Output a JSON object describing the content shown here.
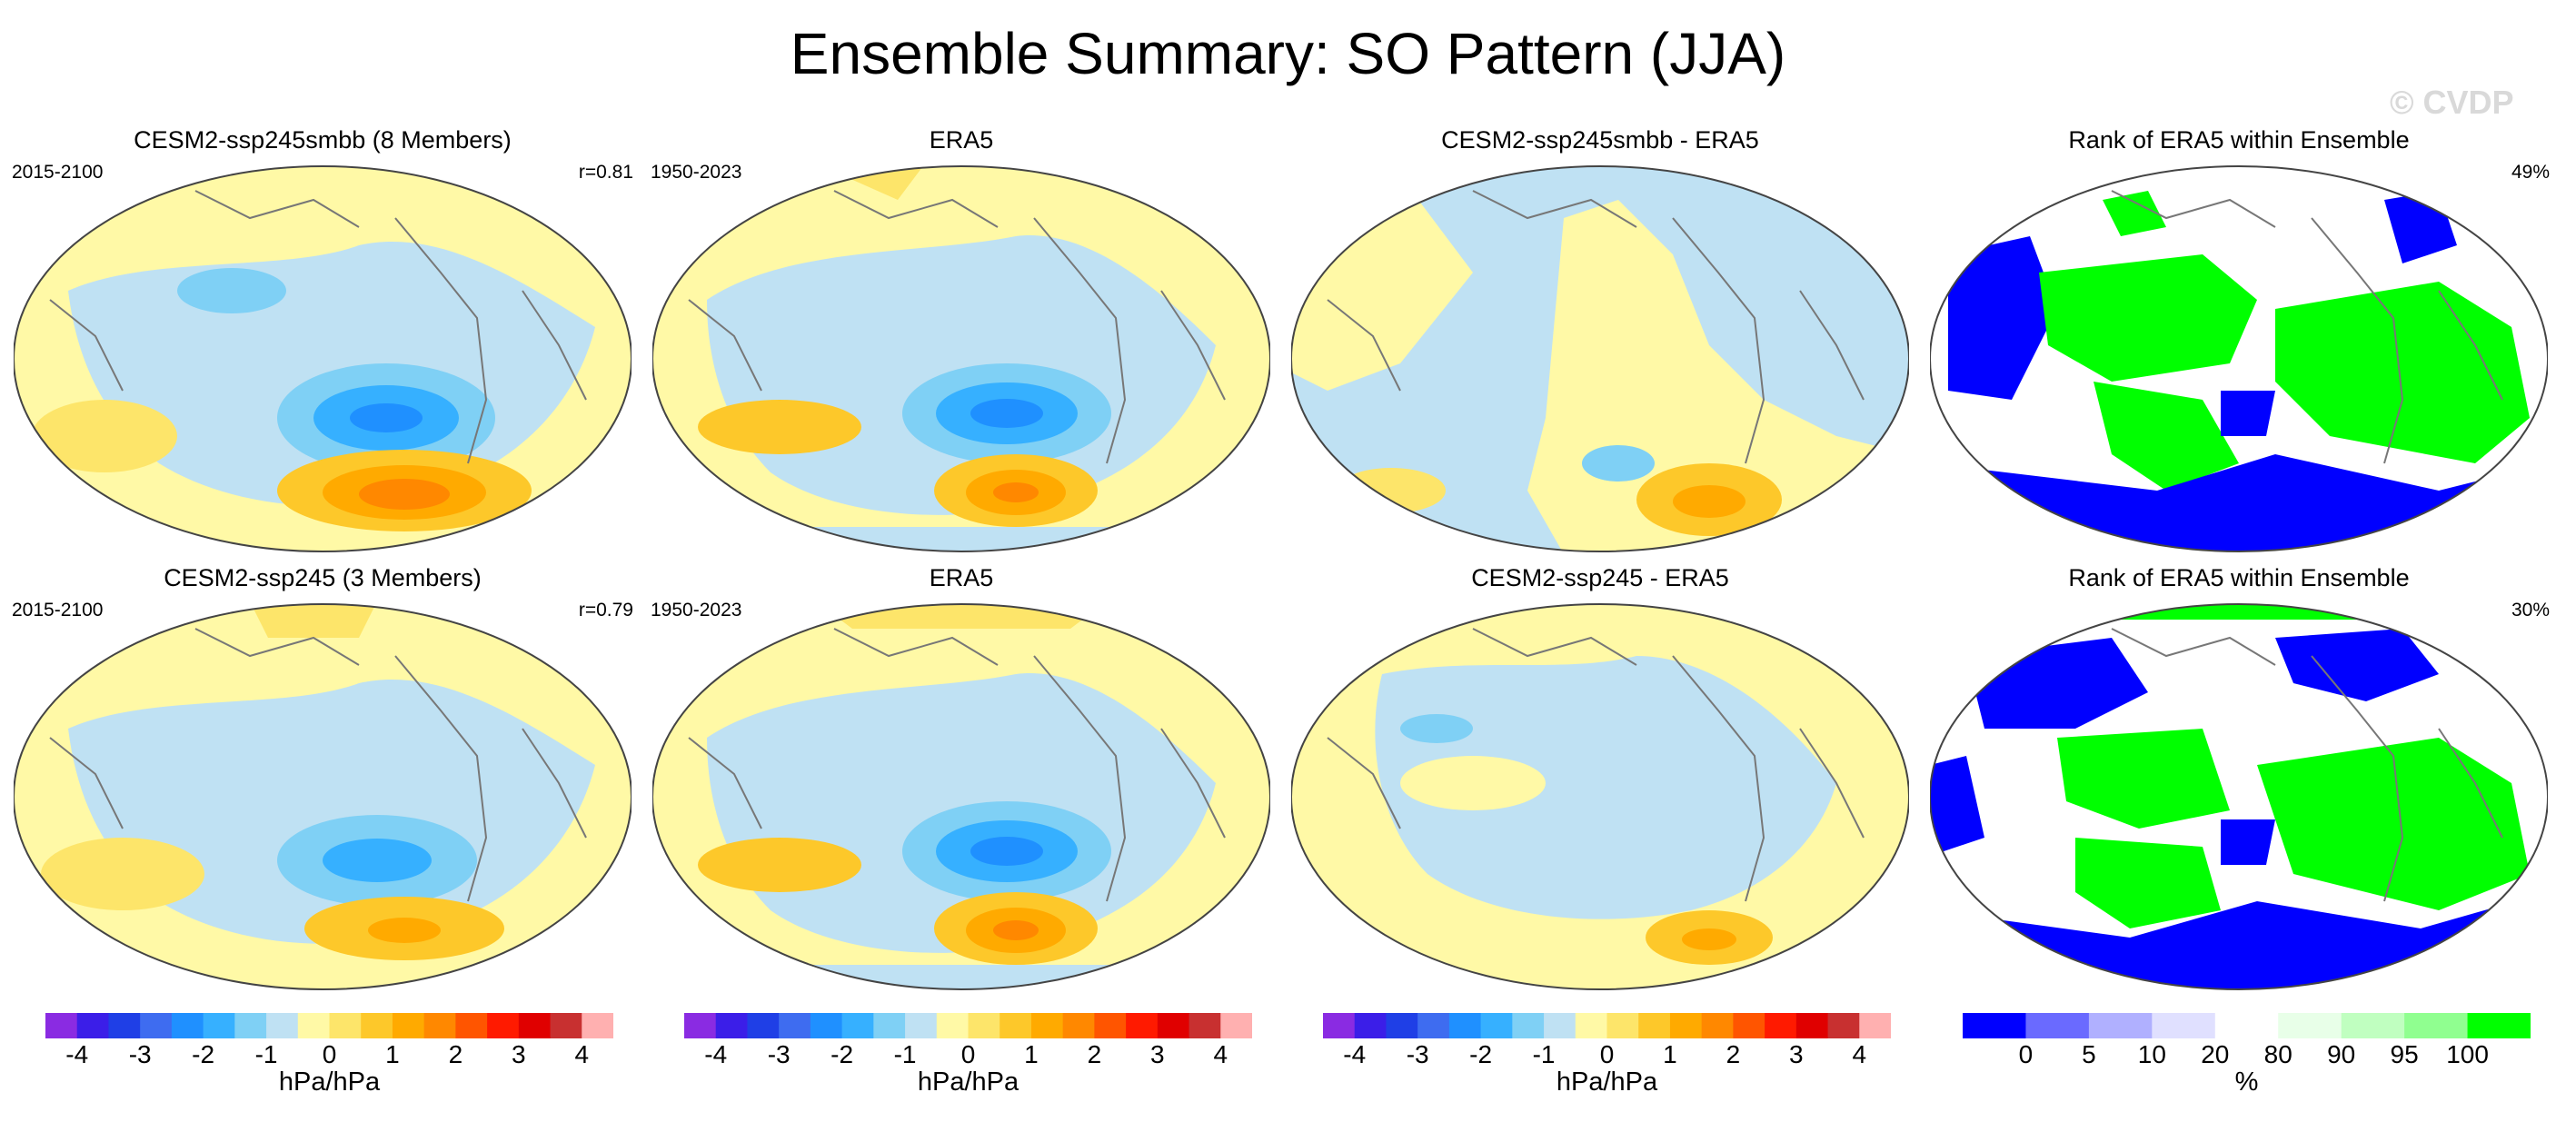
{
  "header": {
    "title": "Ensemble Summary: SO Pattern (JJA)",
    "watermark": "© CVDP"
  },
  "rows": [
    {
      "panels": [
        {
          "title": "CESM2-ssp245smbb (8 Members)",
          "years": "2015-2100",
          "right": "r=0.81"
        },
        {
          "title": "ERA5",
          "years": "1950-2023",
          "right": ""
        },
        {
          "title": "CESM2-ssp245smbb - ERA5",
          "years": "",
          "right": ""
        },
        {
          "title": "Rank of ERA5 within Ensemble",
          "years": "",
          "right": "49%"
        }
      ]
    },
    {
      "panels": [
        {
          "title": "CESM2-ssp245 (3 Members)",
          "years": "2015-2100",
          "right": "r=0.79"
        },
        {
          "title": "ERA5",
          "years": "1950-2023",
          "right": ""
        },
        {
          "title": "CESM2-ssp245 - ERA5",
          "years": "",
          "right": ""
        },
        {
          "title": "Rank of ERA5 within Ensemble",
          "years": "",
          "right": "30%"
        }
      ]
    }
  ],
  "colorbars": {
    "pressure": {
      "ticks": [
        "-4",
        "-3",
        "-2",
        "-1",
        "0",
        "1",
        "2",
        "3",
        "4"
      ],
      "unit": "hPa/hPa",
      "colors": [
        "#8a2be2",
        "#3b1ee8",
        "#1f3fe6",
        "#3e6cf0",
        "#1f90ff",
        "#36b0ff",
        "#7fd0f5",
        "#bfe1f3",
        "#fff9a6",
        "#fde56a",
        "#fdc82a",
        "#ffaa00",
        "#ff8800",
        "#ff5500",
        "#ff1a00",
        "#e00000",
        "#c83030",
        "#ffb0b0"
      ]
    },
    "rank": {
      "ticks": [
        "0",
        "5",
        "10",
        "20",
        "80",
        "90",
        "95",
        "100"
      ],
      "unit": "%",
      "colors": [
        "#0000ff",
        "#6a6aff",
        "#b0b0ff",
        "#e0e0ff",
        "#ffffff",
        "#e8ffe8",
        "#c0ffc0",
        "#90ff90",
        "#00ff00"
      ]
    }
  }
}
